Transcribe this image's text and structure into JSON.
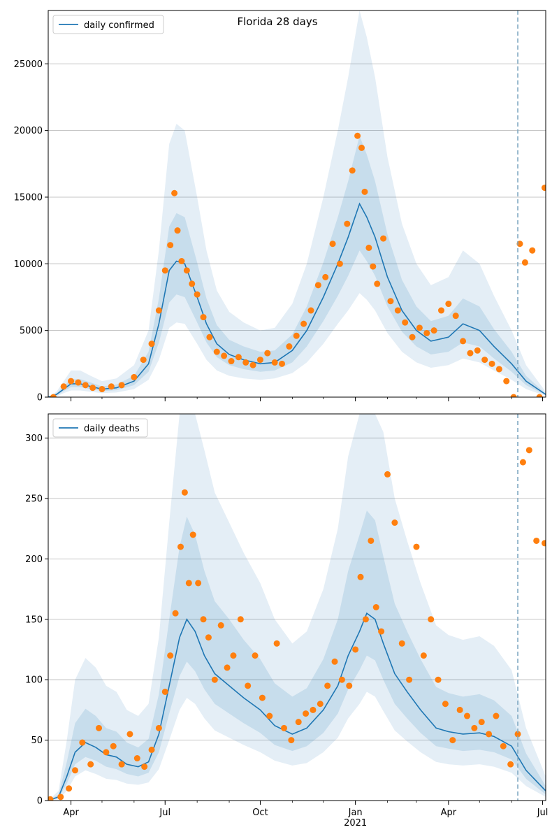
{
  "figure": {
    "title": "Florida 28 days"
  },
  "chart_data": [
    {
      "type": "line",
      "title": "",
      "legend": "daily confirmed",
      "legend_placement": "top-left",
      "grid": "horizontal",
      "ylim": [
        0,
        29000
      ],
      "yticks": [
        0,
        5000,
        10000,
        15000,
        20000,
        25000
      ],
      "xlim": [
        "2020-03-10",
        "2021-07-04"
      ],
      "xticks": [
        {
          "date": "2020-04-01",
          "label": "Apr"
        },
        {
          "date": "2020-07-01",
          "label": "Jul"
        },
        {
          "date": "2020-10-01",
          "label": "Oct"
        },
        {
          "date": "2021-01-01",
          "label": "Jan"
        },
        {
          "date": "2021-04-01",
          "label": "Apr"
        },
        {
          "date": "2021-07-01",
          "label": "Jul"
        }
      ],
      "forecast_start": "2021-06-07",
      "model_x": [
        "2020-03-10",
        "2020-03-18",
        "2020-03-25",
        "2020-04-01",
        "2020-04-10",
        "2020-04-20",
        "2020-05-01",
        "2020-05-15",
        "2020-06-01",
        "2020-06-15",
        "2020-06-25",
        "2020-07-05",
        "2020-07-12",
        "2020-07-20",
        "2020-08-01",
        "2020-08-10",
        "2020-08-20",
        "2020-09-01",
        "2020-09-15",
        "2020-10-01",
        "2020-10-15",
        "2020-11-01",
        "2020-11-15",
        "2020-12-01",
        "2020-12-15",
        "2020-12-25",
        "2021-01-05",
        "2021-01-12",
        "2021-01-20",
        "2021-02-01",
        "2021-02-15",
        "2021-03-01",
        "2021-03-15",
        "2021-04-01",
        "2021-04-15",
        "2021-05-01",
        "2021-05-15",
        "2021-06-01",
        "2021-06-15",
        "2021-07-04"
      ],
      "model_y": [
        0,
        200,
        600,
        1000,
        1000,
        800,
        600,
        700,
        1200,
        2500,
        5500,
        9500,
        10200,
        10000,
        7500,
        5500,
        4000,
        3200,
        2800,
        2500,
        2600,
        3500,
        5000,
        7500,
        10000,
        12000,
        14500,
        13500,
        12000,
        9000,
        6500,
        5000,
        4200,
        4500,
        5500,
        5000,
        3800,
        2500,
        1200,
        200
      ],
      "band90_low": [
        0,
        50,
        300,
        500,
        500,
        400,
        300,
        350,
        600,
        1300,
        2800,
        5200,
        5600,
        5500,
        4000,
        2800,
        2000,
        1600,
        1400,
        1300,
        1400,
        1800,
        2600,
        4000,
        5500,
        6500,
        7800,
        7300,
        6500,
        4800,
        3400,
        2600,
        2200,
        2400,
        2900,
        2600,
        2000,
        1300,
        600,
        100
      ],
      "band90_high": [
        0,
        400,
        1200,
        2000,
        2000,
        1600,
        1200,
        1400,
        2400,
        5000,
        11000,
        19000,
        20500,
        20000,
        15000,
        11000,
        8000,
        6400,
        5600,
        5000,
        5200,
        7000,
        10000,
        15000,
        20000,
        24000,
        29000,
        27000,
        24000,
        18000,
        13000,
        10000,
        8400,
        9000,
        11000,
        10000,
        7600,
        5000,
        2400,
        400
      ],
      "band50_low": [
        0,
        120,
        450,
        750,
        750,
        600,
        450,
        520,
        900,
        1900,
        4100,
        7100,
        7700,
        7500,
        5600,
        4100,
        3000,
        2400,
        2100,
        1900,
        2000,
        2600,
        3800,
        5700,
        7600,
        9100,
        11000,
        10200,
        9100,
        6800,
        4900,
        3800,
        3200,
        3400,
        4100,
        3800,
        2900,
        1900,
        900,
        150
      ],
      "band50_high": [
        0,
        280,
        800,
        1350,
        1350,
        1100,
        800,
        950,
        1600,
        3400,
        7400,
        12800,
        13800,
        13500,
        10100,
        7400,
        5400,
        4300,
        3800,
        3400,
        3500,
        4700,
        6800,
        10100,
        13500,
        16200,
        19600,
        18200,
        16200,
        12200,
        8800,
        6800,
        5700,
        6100,
        7400,
        6800,
        5100,
        3400,
        1600,
        270
      ],
      "observed_x": [
        "2020-03-15",
        "2020-03-25",
        "2020-04-01",
        "2020-04-08",
        "2020-04-15",
        "2020-04-22",
        "2020-05-01",
        "2020-05-10",
        "2020-05-20",
        "2020-06-01",
        "2020-06-10",
        "2020-06-18",
        "2020-06-25",
        "2020-07-01",
        "2020-07-06",
        "2020-07-10",
        "2020-07-13",
        "2020-07-17",
        "2020-07-22",
        "2020-07-27",
        "2020-08-01",
        "2020-08-07",
        "2020-08-13",
        "2020-08-20",
        "2020-08-27",
        "2020-09-03",
        "2020-09-10",
        "2020-09-17",
        "2020-09-24",
        "2020-10-01",
        "2020-10-08",
        "2020-10-15",
        "2020-10-22",
        "2020-10-29",
        "2020-11-05",
        "2020-11-12",
        "2020-11-19",
        "2020-11-26",
        "2020-12-03",
        "2020-12-10",
        "2020-12-17",
        "2020-12-24",
        "2020-12-29",
        "2021-01-03",
        "2021-01-07",
        "2021-01-10",
        "2021-01-14",
        "2021-01-18",
        "2021-01-22",
        "2021-01-28",
        "2021-02-04",
        "2021-02-11",
        "2021-02-18",
        "2021-02-25",
        "2021-03-04",
        "2021-03-11",
        "2021-03-18",
        "2021-03-25",
        "2021-04-01",
        "2021-04-08",
        "2021-04-15",
        "2021-04-22",
        "2021-04-29",
        "2021-05-06",
        "2021-05-13",
        "2021-05-20",
        "2021-05-27",
        "2021-06-03",
        "2021-06-09",
        "2021-06-14",
        "2021-06-21",
        "2021-06-28",
        "2021-07-03"
      ],
      "observed_y": [
        0,
        800,
        1200,
        1100,
        900,
        700,
        600,
        800,
        900,
        1500,
        2800,
        4000,
        6500,
        9500,
        11400,
        15300,
        12500,
        10200,
        9500,
        8500,
        7700,
        6000,
        4500,
        3400,
        3100,
        2700,
        3000,
        2600,
        2400,
        2800,
        3300,
        2600,
        2500,
        3800,
        4600,
        5500,
        6500,
        8400,
        9000,
        11500,
        10000,
        13000,
        17000,
        19600,
        18700,
        15400,
        11200,
        9800,
        8500,
        11900,
        7200,
        6500,
        5600,
        4500,
        5200,
        4800,
        5000,
        6500,
        7000,
        6100,
        4200,
        3300,
        3500,
        2800,
        2500,
        2100,
        1200,
        0,
        11500,
        10100,
        11000,
        0,
        15700
      ]
    },
    {
      "type": "line",
      "title": "",
      "legend": "daily deaths",
      "legend_placement": "top-left",
      "grid": "horizontal",
      "ylim": [
        0,
        320
      ],
      "yticks": [
        0,
        50,
        100,
        150,
        200,
        250,
        300
      ],
      "xlim": [
        "2020-03-10",
        "2021-07-04"
      ],
      "xticks": [
        {
          "date": "2020-04-01",
          "label": "Apr"
        },
        {
          "date": "2020-07-01",
          "label": "Jul"
        },
        {
          "date": "2020-10-01",
          "label": "Oct"
        },
        {
          "date": "2021-01-01",
          "label": "Jan\n2021"
        },
        {
          "date": "2021-04-01",
          "label": "Apr"
        },
        {
          "date": "2021-07-01",
          "label": "Jul"
        }
      ],
      "forecast_start": "2021-06-07",
      "model_x": [
        "2020-03-10",
        "2020-03-20",
        "2020-03-28",
        "2020-04-05",
        "2020-04-15",
        "2020-04-25",
        "2020-05-05",
        "2020-05-15",
        "2020-05-25",
        "2020-06-05",
        "2020-06-15",
        "2020-06-25",
        "2020-07-05",
        "2020-07-15",
        "2020-07-22",
        "2020-07-30",
        "2020-08-08",
        "2020-08-18",
        "2020-09-01",
        "2020-09-15",
        "2020-10-01",
        "2020-10-15",
        "2020-11-01",
        "2020-11-15",
        "2020-12-01",
        "2020-12-15",
        "2020-12-25",
        "2021-01-05",
        "2021-01-12",
        "2021-01-20",
        "2021-01-28",
        "2021-02-08",
        "2021-02-20",
        "2021-03-05",
        "2021-03-20",
        "2021-04-01",
        "2021-04-15",
        "2021-05-01",
        "2021-05-15",
        "2021-06-01",
        "2021-06-15",
        "2021-07-04"
      ],
      "model_y": [
        0,
        3,
        20,
        40,
        48,
        44,
        38,
        36,
        30,
        28,
        32,
        55,
        95,
        135,
        150,
        140,
        120,
        105,
        95,
        85,
        75,
        62,
        55,
        60,
        75,
        95,
        120,
        140,
        155,
        150,
        130,
        105,
        90,
        75,
        60,
        57,
        55,
        56,
        53,
        45,
        25,
        8
      ],
      "band90_low": [
        0,
        1,
        8,
        20,
        25,
        22,
        18,
        17,
        14,
        13,
        15,
        26,
        50,
        75,
        85,
        80,
        68,
        58,
        52,
        46,
        40,
        33,
        29,
        31,
        40,
        52,
        68,
        80,
        90,
        86,
        74,
        58,
        49,
        40,
        32,
        30,
        29,
        30,
        28,
        23,
        12,
        3
      ],
      "band90_high": [
        0,
        8,
        50,
        100,
        118,
        110,
        95,
        90,
        75,
        70,
        80,
        135,
        230,
        320,
        360,
        340,
        290,
        255,
        230,
        205,
        180,
        150,
        130,
        140,
        175,
        225,
        285,
        330,
        360,
        350,
        305,
        250,
        215,
        180,
        145,
        137,
        133,
        136,
        128,
        108,
        60,
        20
      ],
      "band50_low": [
        0,
        2,
        14,
        30,
        36,
        33,
        28,
        26,
        22,
        20,
        23,
        40,
        72,
        103,
        115,
        107,
        92,
        80,
        72,
        64,
        56,
        46,
        41,
        45,
        56,
        72,
        92,
        108,
        120,
        116,
        100,
        80,
        68,
        56,
        45,
        43,
        41,
        42,
        40,
        34,
        18,
        5
      ],
      "band50_high": [
        0,
        5,
        32,
        64,
        76,
        70,
        60,
        57,
        48,
        44,
        51,
        88,
        150,
        210,
        235,
        220,
        190,
        165,
        150,
        133,
        117,
        97,
        86,
        93,
        117,
        150,
        190,
        220,
        240,
        232,
        202,
        163,
        140,
        117,
        94,
        89,
        86,
        88,
        83,
        70,
        39,
        12
      ],
      "observed_x": [
        "2020-03-12",
        "2020-03-22",
        "2020-03-30",
        "2020-04-05",
        "2020-04-12",
        "2020-04-20",
        "2020-04-28",
        "2020-05-05",
        "2020-05-12",
        "2020-05-20",
        "2020-05-28",
        "2020-06-04",
        "2020-06-11",
        "2020-06-18",
        "2020-06-25",
        "2020-07-01",
        "2020-07-06",
        "2020-07-11",
        "2020-07-16",
        "2020-07-20",
        "2020-07-24",
        "2020-07-28",
        "2020-08-02",
        "2020-08-07",
        "2020-08-12",
        "2020-08-18",
        "2020-08-24",
        "2020-08-30",
        "2020-09-05",
        "2020-09-12",
        "2020-09-19",
        "2020-09-26",
        "2020-10-03",
        "2020-10-10",
        "2020-10-17",
        "2020-10-24",
        "2020-10-31",
        "2020-11-07",
        "2020-11-14",
        "2020-11-21",
        "2020-11-28",
        "2020-12-05",
        "2020-12-12",
        "2020-12-19",
        "2020-12-26",
        "2021-01-01",
        "2021-01-06",
        "2021-01-11",
        "2021-01-16",
        "2021-01-21",
        "2021-01-26",
        "2021-02-01",
        "2021-02-08",
        "2021-02-15",
        "2021-02-22",
        "2021-03-01",
        "2021-03-08",
        "2021-03-15",
        "2021-03-22",
        "2021-03-29",
        "2021-04-05",
        "2021-04-12",
        "2021-04-19",
        "2021-04-26",
        "2021-05-03",
        "2021-05-10",
        "2021-05-17",
        "2021-05-24",
        "2021-05-31",
        "2021-06-07",
        "2021-06-12",
        "2021-06-18",
        "2021-06-25",
        "2021-07-03"
      ],
      "observed_y": [
        1,
        3,
        10,
        25,
        48,
        30,
        60,
        40,
        45,
        30,
        55,
        35,
        28,
        42,
        60,
        90,
        120,
        155,
        210,
        255,
        180,
        220,
        180,
        150,
        135,
        100,
        145,
        110,
        120,
        150,
        95,
        120,
        85,
        70,
        130,
        60,
        50,
        65,
        72,
        75,
        80,
        95,
        115,
        100,
        95,
        125,
        185,
        150,
        215,
        160,
        140,
        270,
        230,
        130,
        100,
        210,
        120,
        150,
        100,
        80,
        50,
        75,
        70,
        60,
        65,
        55,
        70,
        45,
        30,
        55,
        280,
        290,
        215,
        213
      ]
    }
  ]
}
